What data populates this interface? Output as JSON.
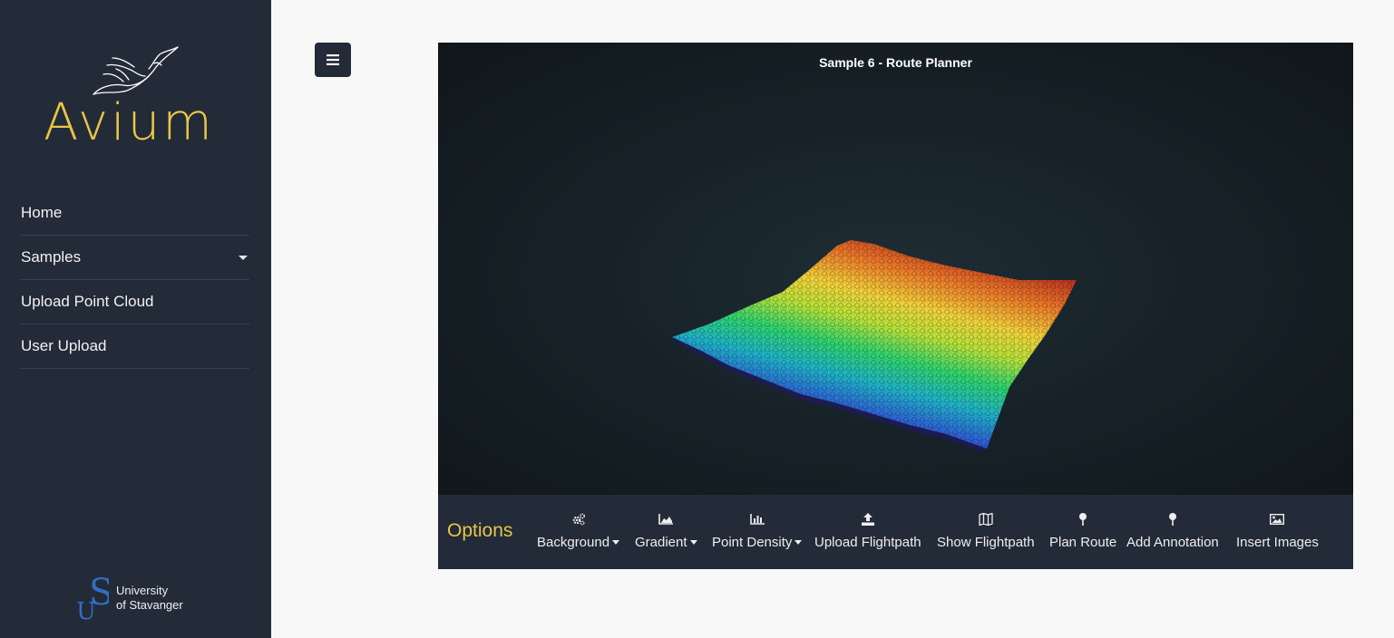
{
  "brand": {
    "name": "Avium"
  },
  "sidebar": {
    "items": [
      {
        "label": "Home",
        "has_dropdown": false
      },
      {
        "label": "Samples",
        "has_dropdown": true
      },
      {
        "label": "Upload Point Cloud",
        "has_dropdown": false
      },
      {
        "label": "User Upload",
        "has_dropdown": false
      }
    ],
    "footer": {
      "line1": "University",
      "line2": "of Stavanger"
    }
  },
  "toggle": {
    "icon": "bars-icon"
  },
  "viewer": {
    "title": "Sample 6 - Route Planner"
  },
  "options": {
    "label": "Options",
    "items": [
      {
        "label": "Background",
        "icon": "cogs-icon",
        "dropdown": true
      },
      {
        "label": "Gradient",
        "icon": "area-chart-icon",
        "dropdown": true
      },
      {
        "label": "Point Density",
        "icon": "bar-chart-icon",
        "dropdown": true
      },
      {
        "label": "Upload Flightpath",
        "icon": "upload-icon",
        "dropdown": false
      },
      {
        "label": "Show Flightpath",
        "icon": "map-icon",
        "dropdown": false
      },
      {
        "label": "Plan Route",
        "icon": "pin-icon",
        "dropdown": false
      },
      {
        "label": "Add Annotation",
        "icon": "pin-icon",
        "dropdown": false
      },
      {
        "label": "Insert Images",
        "icon": "image-icon",
        "dropdown": false
      }
    ]
  },
  "colors": {
    "sidebar_bg": "#232a38",
    "accent": "#e8c547",
    "page_bg": "#f8f8f8"
  }
}
